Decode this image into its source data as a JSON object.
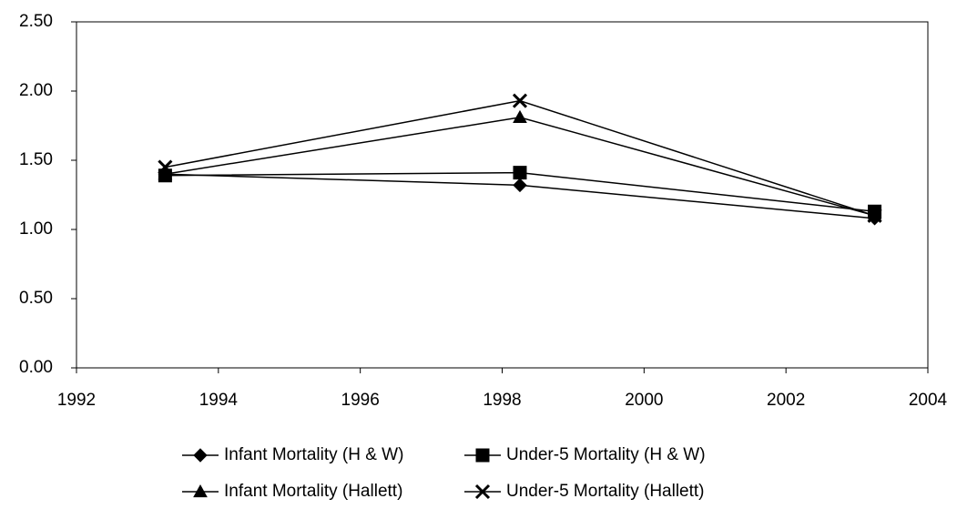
{
  "chart_data": {
    "type": "line",
    "x": [
      1993.25,
      1998.25,
      2003.25
    ],
    "series": [
      {
        "name": "Infant Mortality (H & W)",
        "color": "#000000",
        "marker": "diamond",
        "values": [
          1.4,
          1.32,
          1.08
        ]
      },
      {
        "name": "Under-5 Mortality (H & W)",
        "color": "#000000",
        "marker": "square",
        "values": [
          1.39,
          1.41,
          1.13
        ]
      },
      {
        "name": "Infant Mortality (Hallett)",
        "color": "#000000",
        "marker": "triangle",
        "values": [
          1.4,
          1.81,
          1.1
        ]
      },
      {
        "name": "Under-5 Mortality (Hallett)",
        "color": "#000000",
        "marker": "x",
        "values": [
          1.45,
          1.93,
          1.1
        ]
      }
    ],
    "xlim": [
      1992,
      2004
    ],
    "xticks": [
      1992,
      1994,
      1996,
      1998,
      2000,
      2002,
      2004
    ],
    "ylim": [
      0,
      2.5
    ],
    "yticks": [
      {
        "value": 0,
        "label": "0.00"
      },
      {
        "value": 0.5,
        "label": "0.50"
      },
      {
        "value": 1,
        "label": "1.00"
      },
      {
        "value": 1.5,
        "label": "1.50"
      },
      {
        "value": 2,
        "label": "2.00"
      },
      {
        "value": 2.5,
        "label": "2.50"
      }
    ],
    "grid": false,
    "legend": "bottom"
  }
}
